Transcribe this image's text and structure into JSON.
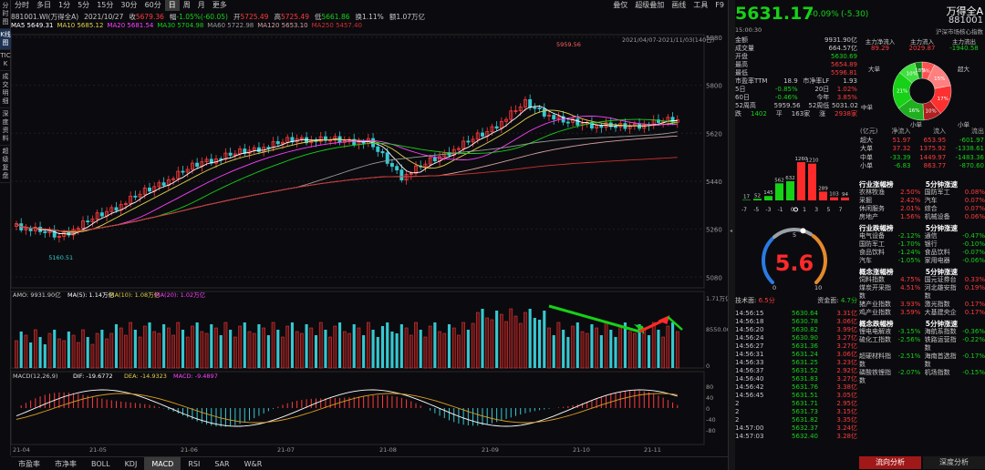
{
  "sidebar": [
    "分时图",
    "K线图",
    "TICK",
    "成交明细",
    "深度资料",
    "超级复盘"
  ],
  "toolbar": {
    "periods": [
      "分时",
      "多日",
      "1分",
      "5分",
      "15分",
      "30分",
      "60分",
      "日",
      "周",
      "月",
      "更多"
    ],
    "active": "日",
    "right": [
      "叠仅",
      "超级叠加",
      "画线",
      "工具",
      "F9"
    ]
  },
  "info": {
    "code": "881001.WI(万得全A)",
    "date": "2021/10/27",
    "close_label": "收",
    "close": "5679.36",
    "amp_label": "幅",
    "change": "-1.05%(-60.05)",
    "open_label": "开",
    "open": "5725.49",
    "high_label": "高",
    "high": "5725.49",
    "low_label": "低",
    "low": "5661.86",
    "turnover_label": "换",
    "turnover": "1.11%",
    "amount_label": "额",
    "amount": "1.07万亿"
  },
  "ma": [
    {
      "t": "MA5",
      "v": "5649.31",
      "c": "#ffffff"
    },
    {
      "t": "MA10",
      "v": "5685.12",
      "c": "#e0d24a"
    },
    {
      "t": "MA20",
      "v": "5681.54",
      "c": "#ff40ff"
    },
    {
      "t": "MA30",
      "v": "5704.98",
      "c": "#17d117"
    },
    {
      "t": "MA60",
      "v": "5722.98",
      "c": "#9a9a9a"
    },
    {
      "t": "MA120",
      "v": "5653.10",
      "c": "#d6a0a0"
    },
    {
      "t": "MA250",
      "v": "5457.40",
      "c": "#d03030"
    }
  ],
  "range": "2021/04/07-2021/11/03(140日)",
  "price_ticks": [
    "5980",
    "5800",
    "5620",
    "5440",
    "5260",
    "5080"
  ],
  "high_label": "5959.56",
  "low_label": "5160.51",
  "amo": {
    "label": "AMO: 9931.90亿",
    "ma5": "MA(5): 1.14万亿",
    "ma10": "MA(10): 1.08万亿",
    "ma20": "MA(20): 1.02万亿",
    "ticks": [
      "1.71万亿",
      "8550.00亿",
      "0"
    ]
  },
  "macd": {
    "label": "MACD(12,26,9)",
    "dif": "DIF: -19.6772",
    "dea": "DEA: -14.9323",
    "macd": "MACD: -9.4897",
    "ticks": [
      "80",
      "40",
      "0",
      "-40",
      "-80"
    ]
  },
  "xticks": [
    "21-04",
    "21-05",
    "21-06",
    "21-07",
    "21-08",
    "21-09",
    "21-10",
    "21-11"
  ],
  "bottom_tabs": [
    "市盈率",
    "市净率",
    "BOLL",
    "KDJ",
    "MACD",
    "RSI",
    "SAR",
    "W&R"
  ],
  "bottom_active": "MACD",
  "quote": {
    "price": "5631.17",
    "chg": "-0.09%",
    "chg_abs": "(-5.30)",
    "name": "万得全A",
    "code": "881001",
    "time": "15:00:30",
    "market": "沪深市场核心指数"
  },
  "stats": [
    [
      "金额",
      "9931.90亿",
      ""
    ],
    [
      "成交量",
      "664.57亿",
      ""
    ],
    [
      "开盘",
      "5630.69",
      "g"
    ],
    [
      "最高",
      "5654.89",
      "r"
    ],
    [
      "最低",
      "5596.81",
      "r"
    ]
  ],
  "stats2": [
    [
      "市盈率TTM",
      "18.9",
      "市净率LF",
      "1.93"
    ],
    [
      "5日",
      "-0.85%",
      "20日",
      "1.02%"
    ],
    [
      "60日",
      "-0.46%",
      "今年",
      "3.85%"
    ],
    [
      "52周高",
      "5959.56",
      "52周低",
      "5031.02"
    ]
  ],
  "updown": {
    "label": "跌",
    "d": "1402",
    "flat_label": "平",
    "f": "163家",
    "up_label": "涨",
    "u": "2938家"
  },
  "flow": {
    "h1": "主力净流入",
    "h2": "主力流入",
    "h3": "主力流出",
    "v1": "89.29",
    "v2": "2029.87",
    "v3": "-1940.58",
    "big_l": "大单",
    "huge_l": "超大",
    "mid_l": "中单",
    "small_l": "小单",
    "pct": [
      "7%",
      "15%",
      "17%",
      "10%",
      "16%",
      "21%",
      "10%",
      "18%"
    ]
  },
  "flow_table": {
    "header": [
      "(亿元)",
      "净流入",
      "流入",
      "流出"
    ],
    "rows": [
      [
        "超大",
        "51.97",
        "653.95",
        "-601.97"
      ],
      [
        "大单",
        "37.32",
        "1375.92",
        "-1338.61"
      ],
      [
        "中单",
        "-33.39",
        "1449.97",
        "-1483.36"
      ],
      [
        "小单",
        "-6.83",
        "863.77",
        "-870.60"
      ]
    ]
  },
  "dist": {
    "values": [
      17,
      52,
      145,
      562,
      632,
      1260,
      1210,
      289,
      103,
      94
    ],
    "xlabels": [
      "-7",
      "-5",
      "-3",
      "-1",
      "0",
      "1",
      "3",
      "5",
      "7"
    ],
    "colors": [
      "g",
      "g",
      "g",
      "g",
      "g",
      "r",
      "r",
      "r",
      "r",
      "r"
    ]
  },
  "gauge": {
    "value": "5.6",
    "min": "0",
    "max": "10",
    "mid": "5",
    "level": 0.56
  },
  "tech": {
    "label": "技术面:",
    "v": "6.5分",
    "label2": "资金面:",
    "v2": "4.7分"
  },
  "ticks_list": [
    [
      "14:56:15",
      "5630.64",
      "3.31亿"
    ],
    [
      "14:56:18",
      "5630.78",
      "3.06亿"
    ],
    [
      "14:56:20",
      "5630.82",
      "3.99亿"
    ],
    [
      "14:56:24",
      "5630.90",
      "3.27亿"
    ],
    [
      "14:56:27",
      "5631.36",
      "3.27亿"
    ],
    [
      "14:56:31",
      "5631.24",
      "3.06亿"
    ],
    [
      "14:56:33",
      "5631.25",
      "3.23亿"
    ],
    [
      "14:56:37",
      "5631.52",
      "2.92亿"
    ],
    [
      "14:56:40",
      "5631.83",
      "3.27亿"
    ],
    [
      "14:56:42",
      "5631.76",
      "3.38亿"
    ],
    [
      "14:56:45",
      "5631.51",
      "3.05亿"
    ],
    [
      "2",
      "5631.71",
      "2.95亿"
    ],
    [
      "2",
      "5631.73",
      "3.15亿"
    ],
    [
      "2",
      "5631.82",
      "3.35亿"
    ],
    [
      "14:57:00",
      "5632.37",
      "3.24亿"
    ],
    [
      "14:57:03",
      "5632.40",
      "3.28亿"
    ]
  ],
  "rank1": {
    "title": "行业涨幅榜",
    "title2": "5分钟涨速",
    "rows": [
      [
        "农林牧渔",
        "2.50%",
        "国防军工",
        "0.08%"
      ],
      [
        "采掘",
        "2.42%",
        "汽车",
        "0.07%"
      ],
      [
        "休闲服务",
        "2.01%",
        "综合",
        "0.07%"
      ],
      [
        "房地产",
        "1.56%",
        "机械设备",
        "0.06%"
      ]
    ]
  },
  "rank2": {
    "title": "行业跌幅榜",
    "title2": "5分钟涨速",
    "rows": [
      [
        "电气设备",
        "-2.12%",
        "通信",
        "-0.47%"
      ],
      [
        "国防军工",
        "-1.70%",
        "银行",
        "-0.10%"
      ],
      [
        "食品饮料",
        "-1.24%",
        "食品饮料",
        "-0.07%"
      ],
      [
        "汽车",
        "-1.05%",
        "家用电器",
        "-0.06%"
      ]
    ]
  },
  "rank3": {
    "title": "概念涨幅榜",
    "title2": "5分钟涨速",
    "rows": [
      [
        "饲料指数",
        "4.75%",
        "国元证券台",
        "0.33%"
      ],
      [
        "煤炭开采指数",
        "4.51%",
        "河北雄安指数",
        "0.19%"
      ],
      [
        "猪产业指数",
        "3.93%",
        "激光指数",
        "0.17%"
      ],
      [
        "鸡产业指数",
        "3.59%",
        "大基建央企",
        "0.17%"
      ]
    ]
  },
  "rank4": {
    "title": "概念跌幅榜",
    "title2": "5分钟涨速",
    "rows": [
      [
        "锂电电解液",
        "-3.15%",
        "海航系指数",
        "-0.36%"
      ],
      [
        "硫化工指数",
        "-2.56%",
        "铁路运营指数",
        "-0.22%"
      ],
      [
        "超硬材料指数",
        "-2.51%",
        "海南首选指数",
        "-0.17%"
      ],
      [
        "磷酸铁锂指数",
        "-2.07%",
        "机场指数",
        "-0.15%"
      ]
    ]
  },
  "right_tabs": [
    "流向分析",
    "深度分析"
  ],
  "right_active": "流向分析"
}
